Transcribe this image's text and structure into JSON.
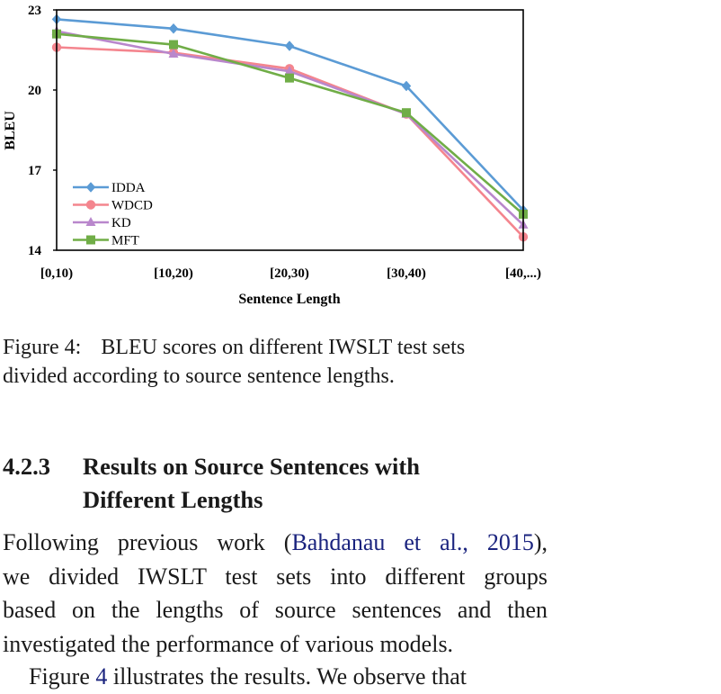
{
  "chart_data": {
    "type": "line",
    "title": "",
    "xlabel": "Sentence Length",
    "ylabel": "BLEU",
    "categories": [
      "[0,10)",
      "[10,20)",
      "[20,30)",
      "[30,40)",
      "[40,...)"
    ],
    "ylim": [
      14,
      23
    ],
    "yticks": [
      14,
      17,
      20,
      23
    ],
    "legend_position": "bottom-left",
    "series": [
      {
        "name": "IDDA",
        "color": "#5b9bd5",
        "marker": "diamond",
        "values": [
          22.65,
          22.3,
          21.65,
          20.15,
          15.5
        ]
      },
      {
        "name": "WDCD",
        "color": "#f4858e",
        "marker": "circle",
        "values": [
          21.6,
          21.4,
          20.8,
          19.1,
          14.5
        ]
      },
      {
        "name": "KD",
        "color": "#b987cc",
        "marker": "triangle",
        "values": [
          22.2,
          21.35,
          20.7,
          19.1,
          14.95
        ]
      },
      {
        "name": "MFT",
        "color": "#70ad47",
        "marker": "square",
        "values": [
          22.1,
          21.7,
          20.45,
          19.15,
          15.35
        ]
      }
    ]
  },
  "caption": {
    "label": "Figure 4:",
    "line1": "BLEU scores on different IWSLT test sets",
    "line2": "divided according to source sentence lengths."
  },
  "section": {
    "number": "4.2.3",
    "title_line1": "Results on Source Sentences with",
    "title_line2": "Different Lengths"
  },
  "paragraph": {
    "line1_pre": "Following previous work (",
    "cite_author": "Bahdanau et al.",
    "cite_sep": ", ",
    "cite_year": "2015",
    "line1_post": "),",
    "line2": "we divided IWSLT test sets into different groups",
    "line3": "based on the lengths of source sentences and then",
    "line4": "investigated the performance of various models."
  },
  "paragraph2": {
    "pre": "Figure ",
    "fig_ref": "4",
    "post": " illustrates the results. We observe that"
  }
}
